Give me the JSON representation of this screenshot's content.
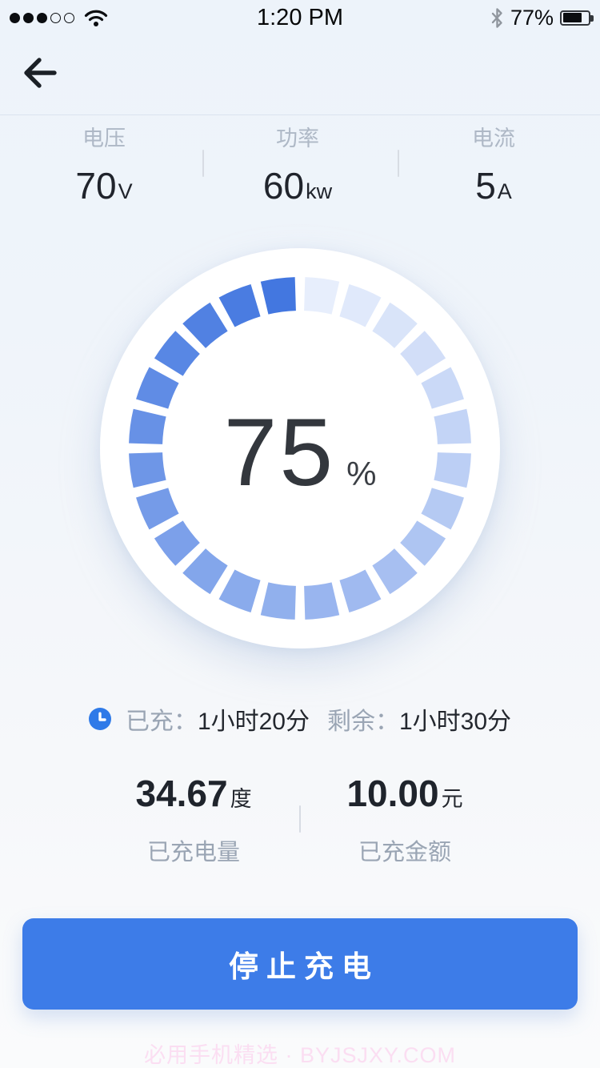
{
  "status_bar": {
    "time": "1:20 PM",
    "battery_percent": "77%",
    "signal_filled": 3,
    "signal_total": 5,
    "battery_fill_ratio": 0.7
  },
  "metrics": [
    {
      "label": "电压",
      "value": "70",
      "unit": "V"
    },
    {
      "label": "功率",
      "value": "60",
      "unit": "kw"
    },
    {
      "label": "电流",
      "value": "5",
      "unit": "A"
    }
  ],
  "gauge": {
    "percent": "75",
    "percent_sign": "%",
    "segments": 24,
    "start_color": "#eef3fd",
    "end_color": "#4377e0"
  },
  "session": {
    "charged_label": "已充：",
    "charged_value": "1小时20分",
    "remaining_label": "剩余：",
    "remaining_value": "1小时30分"
  },
  "totals": [
    {
      "value": "34.67",
      "unit": "度",
      "label": "已充电量"
    },
    {
      "value": "10.00",
      "unit": "元",
      "label": "已充金额"
    }
  ],
  "action": {
    "stop_label": "停止充电"
  },
  "footer": {
    "watermark": "必用手机精选 · BYJSJXY.COM"
  },
  "colors": {
    "accent": "#3d7ce8",
    "ring_start": "#eef3fd",
    "ring_end": "#4377e0",
    "watermark_pink": "#fbdef2"
  }
}
